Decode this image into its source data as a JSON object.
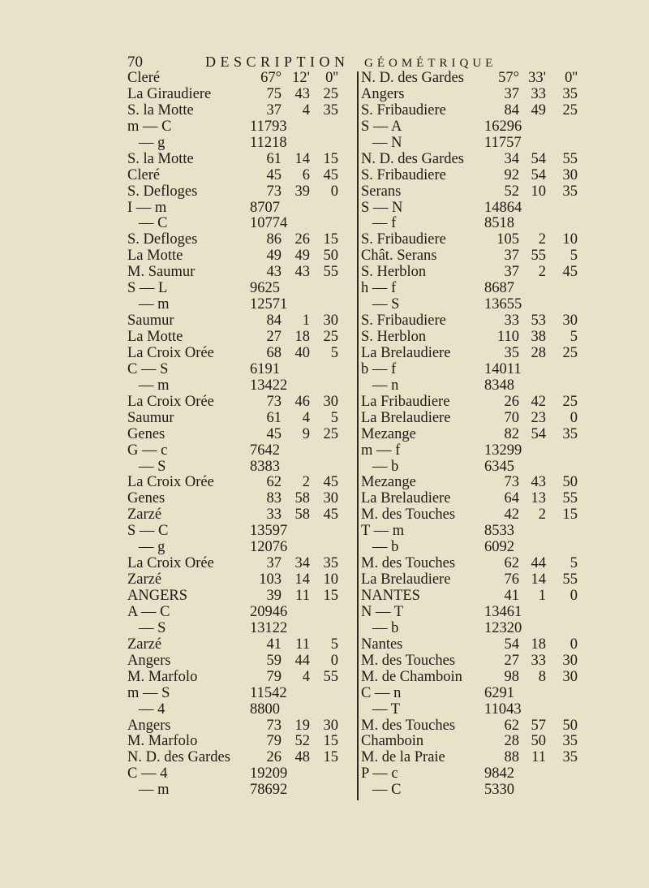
{
  "header": {
    "page_number": "70",
    "title_part1": "DESCRIPTION",
    "title_part2": "GÉOMÉTRIQUE"
  },
  "left_column": [
    {
      "label": "Cleré",
      "deg": "67°",
      "min": "12'",
      "sec": "0''"
    },
    {
      "label": "La Giraudiere",
      "deg": "75",
      "min": "43",
      "sec": "25"
    },
    {
      "label": "S. la Motte",
      "deg": "37",
      "min": "4",
      "sec": "35"
    },
    {
      "label": "m — C",
      "dist": "11793"
    },
    {
      "label": "— g",
      "dist": "11218",
      "indent": true
    },
    {
      "label": "S. la Motte",
      "deg": "61",
      "min": "14",
      "sec": "15"
    },
    {
      "label": "Cleré",
      "deg": "45",
      "min": "6",
      "sec": "45"
    },
    {
      "label": "S. Defloges",
      "deg": "73",
      "min": "39",
      "sec": "0"
    },
    {
      "label": "I — m",
      "dist": "8707"
    },
    {
      "label": "— C",
      "dist": "10774",
      "indent": true
    },
    {
      "label": "S. Defloges",
      "deg": "86",
      "min": "26",
      "sec": "15"
    },
    {
      "label": "La Motte",
      "deg": "49",
      "min": "49",
      "sec": "50"
    },
    {
      "label": "M. Saumur",
      "deg": "43",
      "min": "43",
      "sec": "55"
    },
    {
      "label": "S — L",
      "dist": "9625"
    },
    {
      "label": "— m",
      "dist": "12571",
      "indent": true
    },
    {
      "label": "Saumur",
      "deg": "84",
      "min": "1",
      "sec": "30"
    },
    {
      "label": "La Motte",
      "deg": "27",
      "min": "18",
      "sec": "25"
    },
    {
      "label": "La Croix Orée",
      "deg": "68",
      "min": "40",
      "sec": "5"
    },
    {
      "label": "C — S",
      "dist": "6191"
    },
    {
      "label": "— m",
      "dist": "13422",
      "indent": true
    },
    {
      "label": "La Croix Orée",
      "deg": "73",
      "min": "46",
      "sec": "30"
    },
    {
      "label": "Saumur",
      "deg": "61",
      "min": "4",
      "sec": "5"
    },
    {
      "label": "Genes",
      "deg": "45",
      "min": "9",
      "sec": "25"
    },
    {
      "label": "G — c",
      "dist": "7642"
    },
    {
      "label": "— S",
      "dist": "8383",
      "indent": true
    },
    {
      "label": "La Croix Orée",
      "deg": "62",
      "min": "2",
      "sec": "45"
    },
    {
      "label": "Genes",
      "deg": "83",
      "min": "58",
      "sec": "30"
    },
    {
      "label": "Zarzé",
      "deg": "33",
      "min": "58",
      "sec": "45"
    },
    {
      "label": "S — C",
      "dist": "13597"
    },
    {
      "label": "— g",
      "dist": "12076",
      "indent": true
    },
    {
      "label": "La Croix Orée",
      "deg": "37",
      "min": "34",
      "sec": "35"
    },
    {
      "label": "Zarzé",
      "deg": "103",
      "min": "14",
      "sec": "10"
    },
    {
      "label": "ANGERS",
      "deg": "39",
      "min": "11",
      "sec": "15"
    },
    {
      "label": "A — C",
      "dist": "20946"
    },
    {
      "label": "— S",
      "dist": "13122",
      "indent": true
    },
    {
      "label": "Zarzé",
      "deg": "41",
      "min": "11",
      "sec": "5"
    },
    {
      "label": "Angers",
      "deg": "59",
      "min": "44",
      "sec": "0"
    },
    {
      "label": "M. Marfolo",
      "deg": "79",
      "min": "4",
      "sec": "55"
    },
    {
      "label": "m — S",
      "dist": "11542"
    },
    {
      "label": "— 4",
      "dist": "8800",
      "indent": true
    },
    {
      "label": "Angers",
      "deg": "73",
      "min": "19",
      "sec": "30"
    },
    {
      "label": "M. Marfolo",
      "deg": "79",
      "min": "52",
      "sec": "15"
    },
    {
      "label": "N. D. des Gardes",
      "deg": "26",
      "min": "48",
      "sec": "15"
    },
    {
      "label": "C — 4",
      "dist": "19209"
    },
    {
      "label": "— m",
      "dist": "78692",
      "indent": true
    }
  ],
  "right_column": [
    {
      "label": "N. D. des Gardes",
      "deg": "57°",
      "min": "33'",
      "sec": "0''"
    },
    {
      "label": "Angers",
      "deg": "37",
      "min": "33",
      "sec": "35"
    },
    {
      "label": "S. Fribaudiere",
      "deg": "84",
      "min": "49",
      "sec": "25"
    },
    {
      "label": "S — A",
      "dist": "16296"
    },
    {
      "label": "— N",
      "dist": "11757",
      "indent": true
    },
    {
      "label": "N. D. des Gardes",
      "deg": "34",
      "min": "54",
      "sec": "55"
    },
    {
      "label": "S. Fribaudiere",
      "deg": "92",
      "min": "54",
      "sec": "30"
    },
    {
      "label": "Serans",
      "deg": "52",
      "min": "10",
      "sec": "35"
    },
    {
      "label": "S — N",
      "dist": "14864"
    },
    {
      "label": "— f",
      "dist": "8518",
      "indent": true
    },
    {
      "label": "S. Fribaudiere",
      "deg": "105",
      "min": "2",
      "sec": "10"
    },
    {
      "label": "Chât. Serans",
      "deg": "37",
      "min": "55",
      "sec": "5"
    },
    {
      "label": "S. Herblon",
      "deg": "37",
      "min": "2",
      "sec": "45"
    },
    {
      "label": "h — f",
      "dist": "8687"
    },
    {
      "label": "— S",
      "dist": "13655",
      "indent": true
    },
    {
      "label": "S. Fribaudiere",
      "deg": "33",
      "min": "53",
      "sec": "30"
    },
    {
      "label": "S. Herblon",
      "deg": "110",
      "min": "38",
      "sec": "5"
    },
    {
      "label": "La Brelaudiere",
      "deg": "35",
      "min": "28",
      "sec": "25"
    },
    {
      "label": "b — f",
      "dist": "14011"
    },
    {
      "label": "— n",
      "dist": "8348",
      "indent": true
    },
    {
      "label": "La Fribaudiere",
      "deg": "26",
      "min": "42",
      "sec": "25"
    },
    {
      "label": "La Brelaudiere",
      "deg": "70",
      "min": "23",
      "sec": "0"
    },
    {
      "label": "Mezange",
      "deg": "82",
      "min": "54",
      "sec": "35"
    },
    {
      "label": "m — f",
      "dist": "13299"
    },
    {
      "label": "— b",
      "dist": "6345",
      "indent": true
    },
    {
      "label": "Mezange",
      "deg": "73",
      "min": "43",
      "sec": "50"
    },
    {
      "label": "La Brelaudiere",
      "deg": "64",
      "min": "13",
      "sec": "55"
    },
    {
      "label": "M. des Touches",
      "deg": "42",
      "min": "2",
      "sec": "15"
    },
    {
      "label": "T — m",
      "dist": "8533"
    },
    {
      "label": "— b",
      "dist": "6092",
      "indent": true
    },
    {
      "label": "M. des Touches",
      "deg": "62",
      "min": "44",
      "sec": "5"
    },
    {
      "label": "La Brelaudiere",
      "deg": "76",
      "min": "14",
      "sec": "55"
    },
    {
      "label": "NANTES",
      "deg": "41",
      "min": "1",
      "sec": "0"
    },
    {
      "label": "N — T",
      "dist": "13461"
    },
    {
      "label": "— b",
      "dist": "12320",
      "indent": true
    },
    {
      "label": "Nantes",
      "deg": "54",
      "min": "18",
      "sec": "0"
    },
    {
      "label": "M. des Touches",
      "deg": "27",
      "min": "33",
      "sec": "30"
    },
    {
      "label": "M. de Chamboin",
      "deg": "98",
      "min": "8",
      "sec": "30"
    },
    {
      "label": "C — n",
      "dist": "6291"
    },
    {
      "label": "— T",
      "dist": "11043",
      "indent": true
    },
    {
      "label": "M. des Touches",
      "deg": "62",
      "min": "57",
      "sec": "50"
    },
    {
      "label": "Chamboin",
      "deg": "28",
      "min": "50",
      "sec": "35"
    },
    {
      "label": "M. de la Praie",
      "deg": "88",
      "min": "11",
      "sec": "35"
    },
    {
      "label": "P — c",
      "dist": "9842"
    },
    {
      "label": "— C",
      "dist": "5330",
      "indent": true
    }
  ]
}
